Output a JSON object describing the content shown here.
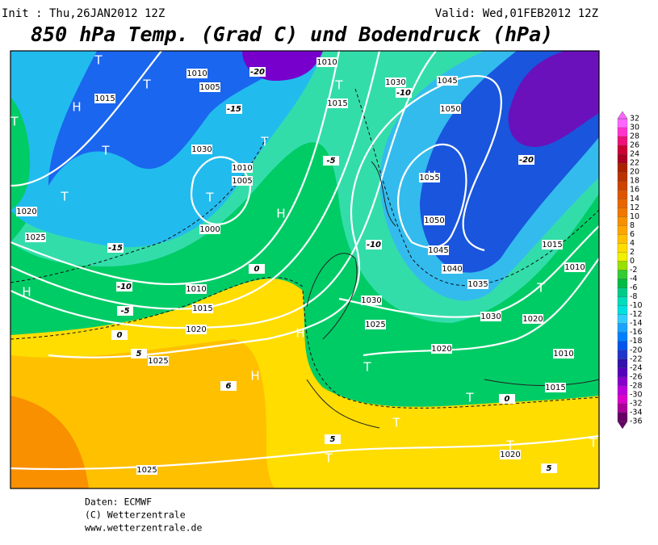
{
  "header": {
    "init": "Init : Thu,26JAN2012 12Z",
    "valid": "Valid: Wed,01FEB2012 12Z",
    "title": "850 hPa Temp. (Grad C) und Bodendruck (hPa)"
  },
  "legend": {
    "labels": [
      32,
      30,
      28,
      26,
      24,
      22,
      20,
      18,
      16,
      14,
      12,
      10,
      8,
      6,
      4,
      2,
      0,
      -2,
      -4,
      -6,
      -8,
      -10,
      -12,
      -14,
      -16,
      -18,
      -20,
      -22,
      -24,
      -26,
      -28,
      -30,
      -32,
      -34,
      -36
    ],
    "colors": [
      "#ff66ff",
      "#ff33cc",
      "#ee1177",
      "#cc0033",
      "#aa0022",
      "#aa2200",
      "#bb3300",
      "#cc4400",
      "#dd5500",
      "#e86600",
      "#f07700",
      "#f89000",
      "#ffa500",
      "#ffc000",
      "#ffdd00",
      "#f0f000",
      "#99e000",
      "#33cc33",
      "#00bb44",
      "#00cc88",
      "#00ddbb",
      "#00e0e0",
      "#33ccff",
      "#1aa3ff",
      "#0080ff",
      "#0055ee",
      "#2233cc",
      "#3311aa",
      "#5500bb",
      "#8800cc",
      "#bb00dd",
      "#dd00cc",
      "#aa0099",
      "#660066"
    ]
  },
  "map": {
    "pressure_labels": [
      1015,
      1020,
      1025,
      1010,
      1015,
      1020,
      1025,
      1025,
      1000,
      1005,
      1010,
      1030,
      1025,
      1020,
      1015,
      1010,
      1020,
      1030,
      1035,
      1040,
      1045,
      1050,
      1055,
      1050,
      1045,
      1030,
      1015,
      1010,
      1015,
      1020,
      1005,
      1030,
      1010,
      1010
    ],
    "temperature_labels": [
      -5,
      -10,
      -15,
      0,
      5,
      0,
      -5,
      -10,
      -20,
      -10,
      0,
      5,
      6,
      5,
      -20,
      -15
    ],
    "centers": [
      "H",
      "T",
      "T",
      "T",
      "T",
      "H",
      "T",
      "H",
      "H",
      "H",
      "T",
      "T",
      "T",
      "T",
      "T",
      "T",
      "T",
      "H",
      "T",
      "T",
      "T"
    ]
  },
  "footer": [
    "Daten: ECMWF",
    "(C) Wetterzentrale",
    "www.wetterzentrale.de"
  ]
}
